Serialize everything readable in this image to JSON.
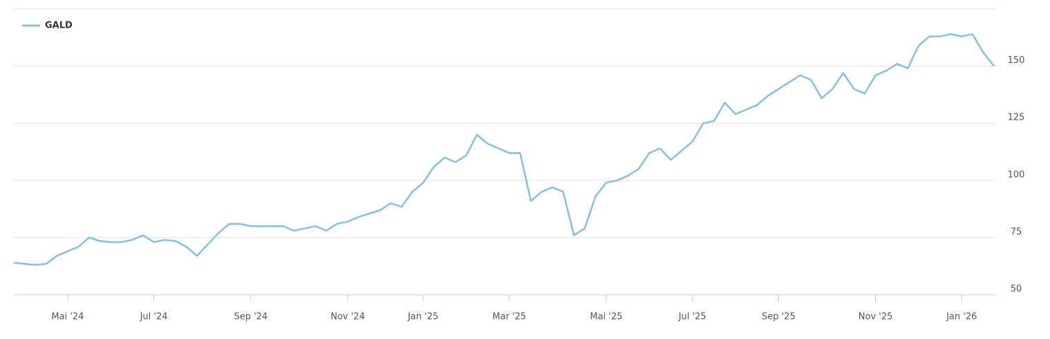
{
  "chart_data": {
    "type": "line",
    "categories": [
      null,
      null,
      null,
      null,
      null,
      "Mai '24",
      null,
      null,
      null,
      null,
      null,
      null,
      null,
      "Jul '24",
      null,
      null,
      null,
      null,
      null,
      null,
      null,
      null,
      "Sep '24",
      null,
      null,
      null,
      null,
      null,
      null,
      null,
      null,
      "Nov '24",
      null,
      null,
      null,
      null,
      null,
      null,
      "Jan '25",
      null,
      null,
      null,
      null,
      null,
      null,
      null,
      "Mar '25",
      null,
      null,
      null,
      null,
      null,
      null,
      null,
      null,
      "Mai '25",
      null,
      null,
      null,
      null,
      null,
      null,
      null,
      "Jul '25",
      null,
      null,
      null,
      null,
      null,
      null,
      null,
      "Sep '25",
      null,
      null,
      null,
      null,
      null,
      null,
      null,
      null,
      "Nov '25",
      null,
      null,
      null,
      null,
      null,
      null,
      null,
      "Jan '26",
      null,
      null,
      null
    ],
    "series": [
      {
        "name": "GALD",
        "color": "#88bfe0",
        "values": [
          64,
          63.5,
          63,
          63.5,
          67,
          69,
          71,
          75,
          73.5,
          73,
          73,
          74,
          76,
          73,
          74,
          73.5,
          71,
          67,
          72,
          77,
          81,
          81,
          80,
          80,
          80,
          80,
          78,
          79,
          80,
          78,
          81,
          82,
          84,
          85.5,
          87,
          90,
          88.5,
          95,
          99,
          106,
          110,
          108,
          111,
          120,
          116,
          114,
          112,
          112,
          91,
          95,
          97,
          95,
          76,
          79,
          93,
          99,
          100,
          102,
          105,
          112,
          114,
          109,
          113,
          117,
          125,
          126,
          134,
          129,
          131,
          133,
          137,
          140,
          143,
          146,
          144,
          136,
          140,
          147,
          140,
          138,
          146,
          148,
          151,
          149,
          159,
          163,
          163,
          164,
          163,
          164,
          156,
          150
        ]
      }
    ],
    "ylim": [
      50,
      175
    ],
    "yticks": [
      50,
      75,
      100,
      125,
      150
    ],
    "grid": true,
    "legend": "top-left"
  }
}
